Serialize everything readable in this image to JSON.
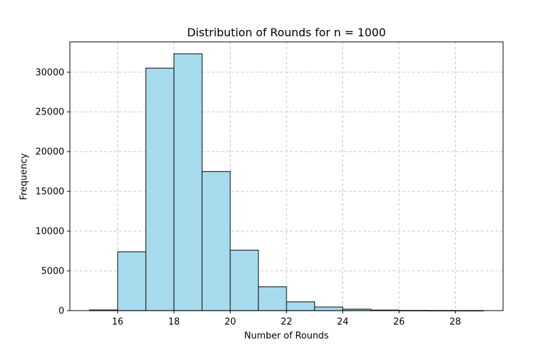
{
  "chart_data": {
    "type": "bar",
    "title": "Distribution of Rounds for n = 1000",
    "xlabel": "Number of Rounds",
    "ylabel": "Frequency",
    "xlim": [
      14.3,
      29.7
    ],
    "ylim": [
      0,
      33800
    ],
    "xticks": [
      16,
      18,
      20,
      22,
      24,
      26,
      28
    ],
    "yticks": [
      0,
      5000,
      10000,
      15000,
      20000,
      25000,
      30000
    ],
    "grid": true,
    "bar_color": "#a6dbee",
    "edge_color": "#2b2b2b",
    "grid_color": "#c8c8c8",
    "bins": [
      {
        "start": 15,
        "end": 16,
        "value": 80
      },
      {
        "start": 16,
        "end": 17,
        "value": 7400
      },
      {
        "start": 17,
        "end": 18,
        "value": 30500
      },
      {
        "start": 18,
        "end": 19,
        "value": 32300
      },
      {
        "start": 19,
        "end": 20,
        "value": 17500
      },
      {
        "start": 20,
        "end": 21,
        "value": 7600
      },
      {
        "start": 21,
        "end": 22,
        "value": 3000
      },
      {
        "start": 22,
        "end": 23,
        "value": 1100
      },
      {
        "start": 23,
        "end": 24,
        "value": 450
      },
      {
        "start": 24,
        "end": 25,
        "value": 180
      },
      {
        "start": 25,
        "end": 26,
        "value": 70
      },
      {
        "start": 26,
        "end": 27,
        "value": 20
      },
      {
        "start": 27,
        "end": 28,
        "value": 8
      },
      {
        "start": 28,
        "end": 29,
        "value": 3
      }
    ]
  }
}
